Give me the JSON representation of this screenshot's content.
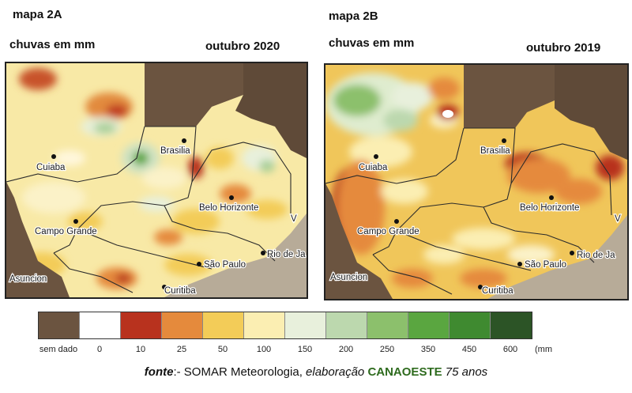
{
  "map_a": {
    "id_label": "mapa 2A",
    "subtitle": "chuvas em mm",
    "period": "outubro 2020",
    "cities": [
      "Cuiaba",
      "Brasilia",
      "Belo Horizonte",
      "Campo Grande",
      "São Paulo",
      "Rio de Ja",
      "Asuncion",
      "Curitiba",
      "V"
    ]
  },
  "map_b": {
    "id_label": "mapa 2B",
    "subtitle": "chuvas em mm",
    "period": "outubro 2019",
    "cities": [
      "Cuiaba",
      "Brasilia",
      "Belo Horizonte",
      "Campo Grande",
      "São Paulo",
      "Rio de Ja",
      "Asuncion",
      "Curitiba",
      "V"
    ]
  },
  "legend": {
    "items": [
      {
        "label": "sem dado",
        "color": "#6b5440"
      },
      {
        "label": "0",
        "color": "#ffffff"
      },
      {
        "label": "10",
        "color": "#b8321e"
      },
      {
        "label": "25",
        "color": "#e58a3c"
      },
      {
        "label": "50",
        "color": "#f3cc58"
      },
      {
        "label": "100",
        "color": "#fbeeb2"
      },
      {
        "label": "150",
        "color": "#e8f0dc"
      },
      {
        "label": "200",
        "color": "#bcd8ae"
      },
      {
        "label": "250",
        "color": "#8cc06c"
      },
      {
        "label": "350",
        "color": "#5aa640"
      },
      {
        "label": "450",
        "color": "#3f8a30"
      },
      {
        "label": "600",
        "color": "#2c5426"
      }
    ],
    "unit": "(mm"
  },
  "footer": {
    "source_label": "fonte",
    "source_sep": ":- SOMAR Meteorologia, ",
    "credit": "elaboração",
    "brand": "CANAOESTE",
    "anniversary": "75 anos"
  }
}
